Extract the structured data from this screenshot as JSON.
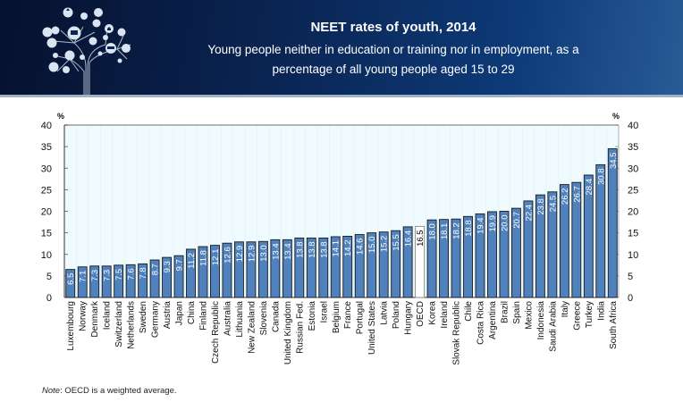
{
  "header": {
    "title": "NEET rates of youth, 2014",
    "subtitle_line1": "Young people neither in education or training nor in employment, as a",
    "subtitle_line2": "percentage of all young people aged 15 to 29",
    "logo_icon": "network-tree-icon"
  },
  "note": {
    "label": "Note",
    "text": ": OECD is a weighted average."
  },
  "colors": {
    "bar": "#4f81bd",
    "bar_border": "#1a1a1a",
    "highlight_bar": "#ffffff",
    "plot_bg": "#f0fbff",
    "label_text": "#ffffff",
    "highlight_label_text": "#000000"
  },
  "chart_data": {
    "type": "bar",
    "title": "NEET rates of youth, 2014",
    "subtitle": "Young people neither in education or training nor in employment, as a percentage of all young people aged 15 to 29",
    "xlabel": "",
    "ylabel": "%",
    "ylabel_right": "%",
    "ylim": [
      0,
      40
    ],
    "yticks": [
      0,
      5,
      10,
      15,
      20,
      25,
      30,
      35,
      40
    ],
    "grid": "vertical-light",
    "legend": "none",
    "highlight": "OECD",
    "categories": [
      "Luxembourg",
      "Norway",
      "Denmark",
      "Iceland",
      "Switzerland",
      "Netherlands",
      "Sweden",
      "Germany",
      "Austria",
      "Japan",
      "China",
      "Finland",
      "Czech Republic",
      "Australia",
      "Lithuania",
      "New Zealand",
      "Slovenia",
      "Canada",
      "United Kingdom",
      "Russian Fed.",
      "Estonia",
      "Israel",
      "Belgium",
      "France",
      "Portugal",
      "United States",
      "Latvia",
      "Poland",
      "Hungary",
      "OECD",
      "Korea",
      "Ireland",
      "Slovak Republic",
      "Chile",
      "Costa Rica",
      "Argentina",
      "Brazil",
      "Spain",
      "Mexico",
      "Indonesia",
      "Saudi Arabia",
      "Italy",
      "Greece",
      "Turkey",
      "India",
      "South Africa"
    ],
    "values": [
      6.5,
      7.1,
      7.3,
      7.3,
      7.5,
      7.6,
      7.8,
      8.7,
      9.3,
      9.7,
      11.2,
      11.8,
      12.1,
      12.6,
      12.9,
      12.9,
      13.0,
      13.4,
      13.4,
      13.8,
      13.8,
      13.8,
      14.1,
      14.2,
      14.6,
      15.0,
      15.2,
      15.5,
      16.4,
      16.5,
      18.0,
      18.1,
      18.2,
      18.8,
      19.4,
      19.9,
      20.0,
      20.7,
      22.4,
      23.8,
      24.5,
      26.2,
      26.7,
      28.4,
      30.8,
      34.5
    ],
    "value_labels": [
      "6.5",
      "7.1",
      "7.3",
      "7.3",
      "7.5",
      "7.6",
      "7.8",
      "8.7",
      "9.3",
      "9.7",
      "11.2",
      "11.8",
      "12.1",
      "12.6",
      "12.9",
      "12.9",
      "13.0",
      "13.4",
      "13.4",
      "13.8",
      "13.8",
      "13.8",
      "14.1",
      "14.2",
      "14.6",
      "15.0",
      "15.2",
      "15.5",
      "16.4",
      "16.5",
      "18.0",
      "18.1",
      "18.2",
      "18.8",
      "19.4",
      "19.9",
      "20.0",
      "20.7",
      "22.4",
      "23.8",
      "24.5",
      "26.2",
      "26.7",
      "28.4",
      "30.8",
      "34.5"
    ],
    "note": "Note: OECD is a weighted average."
  }
}
